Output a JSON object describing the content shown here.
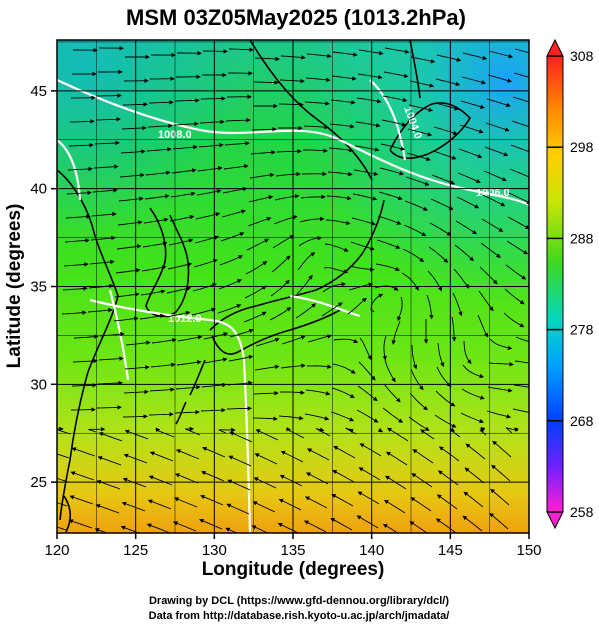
{
  "title": "MSM 03Z05May2025 (1013.2hPa)",
  "xlabel": "Longitude (degrees)",
  "ylabel": "Latitude  (degrees)",
  "x_ticks": [
    "120",
    "125",
    "130",
    "135",
    "140",
    "145",
    "150"
  ],
  "y_ticks": [
    "25",
    "30",
    "35",
    "40",
    "45"
  ],
  "colorbar": {
    "ticks": [
      "308",
      "298",
      "288",
      "278",
      "268",
      "258"
    ],
    "min": 258,
    "max": 308
  },
  "isobar_labels": [
    "1008.0",
    "1012.0",
    "1004.0",
    "1006.0"
  ],
  "credits": {
    "line1": "Drawing by DCL (https://www.gfd-dennou.org/library/dcl/)",
    "line2": "Data from http://database.rish.kyoto-u.ac.jp/arch/jmadata/"
  },
  "chart_data": {
    "type": "heatmap",
    "xlim": [
      120,
      150
    ],
    "ylim": [
      22.4,
      47.6
    ],
    "grid": true
  }
}
